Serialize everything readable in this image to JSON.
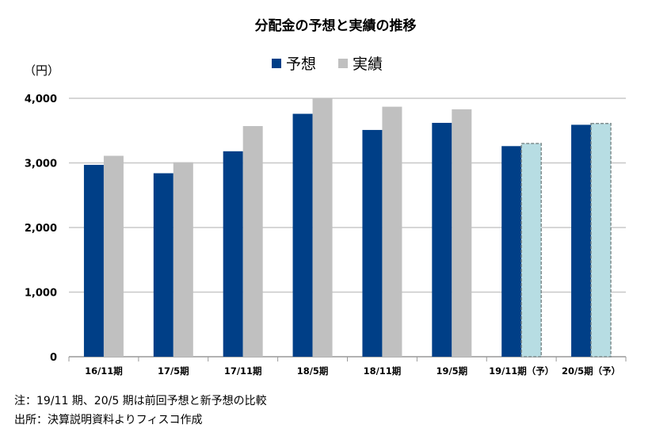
{
  "chart_data": {
    "type": "bar",
    "title": "分配金の予想と実績の推移",
    "ylabel": "（円）",
    "xlabel": "",
    "ylim": [
      0,
      4000
    ],
    "yticks": [
      0,
      1000,
      2000,
      3000,
      4000
    ],
    "ytick_labels": [
      "0",
      "1,000",
      "2,000",
      "3,000",
      "4,000"
    ],
    "grid": true,
    "legend_position": "top-center",
    "categories": [
      "16/11期",
      "17/5期",
      "17/11期",
      "18/5期",
      "18/11期",
      "19/5期",
      "19/11期（予）",
      "20/5期（予）"
    ],
    "series": [
      {
        "name": "予想",
        "color": "#003F87",
        "values": [
          2970,
          2840,
          3180,
          3760,
          3510,
          3620,
          3260,
          3590
        ]
      },
      {
        "name": "実績",
        "color": "#C0C0C0",
        "forecast_color": "#B7DDE3",
        "values": [
          3110,
          3010,
          3570,
          4000,
          3870,
          3830,
          3300,
          3610
        ],
        "forecast_flags": [
          false,
          false,
          false,
          false,
          false,
          false,
          true,
          true
        ]
      }
    ]
  },
  "notes": [
    "注：19/11 期、20/5 期は前回予想と新予想の比較",
    "出所：決算説明資料よりフィスコ作成"
  ]
}
